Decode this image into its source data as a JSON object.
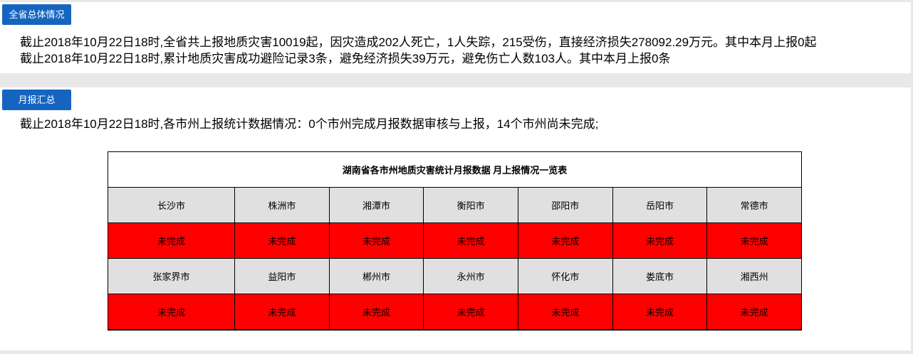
{
  "colors": {
    "badge_blue": "#1565C0",
    "status_red": "#FF0000",
    "city_header_gray": "#E0E0E0",
    "page_edge_gray": "#E8E8E8",
    "table_border": "#000000"
  },
  "overall": {
    "badge": "全省总体情况",
    "lines": [
      "截止2018年10月22日18时,全省共上报地质灾害10019起，因灾造成202人死亡，1人失踪，215受伤，直接经济损失278092.29万元。其中本月上报0起",
      "截止2018年10月22日18时,累计地质灾害成功避险记录3条，避免经济损失39万元，避免伤亡人数103人。其中本月上报0条"
    ]
  },
  "monthly": {
    "badge": "月报汇总",
    "summary": "截止2018年10月22日18时,各市州上报统计数据情况：0个市州完成月报数据审核与上报，14个市州尚未完成;"
  },
  "table": {
    "title": "湖南省各市州地质灾害统计月报数据 月上报情况一览表",
    "rows": [
      {
        "type": "city",
        "cells": [
          "长沙市",
          "株洲市",
          "湘潭市",
          "衡阳市",
          "邵阳市",
          "岳阳市",
          "常德市"
        ]
      },
      {
        "type": "status",
        "cells": [
          "未完成",
          "未完成",
          "未完成",
          "未完成",
          "未完成",
          "未完成",
          "未完成"
        ]
      },
      {
        "type": "city",
        "cells": [
          "张家界市",
          "益阳市",
          "郴州市",
          "永州市",
          "怀化市",
          "娄底市",
          "湘西州"
        ]
      },
      {
        "type": "status",
        "cells": [
          "未完成",
          "未完成",
          "未完成",
          "未完成",
          "未完成",
          "未完成",
          "未完成"
        ]
      }
    ]
  }
}
